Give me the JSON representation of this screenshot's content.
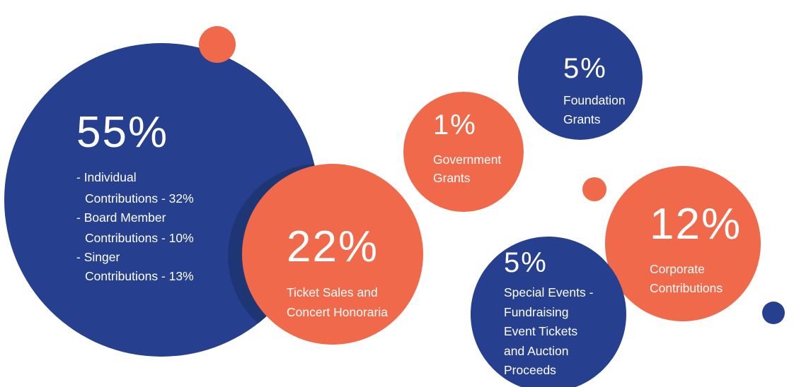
{
  "bubbles": [
    {
      "value": "55%",
      "lines": [
        "- Individual",
        "Contributions - 32%",
        "- Board Member",
        "Contributions - 10%",
        "- Singer",
        "Contributions - 13%"
      ]
    },
    {
      "value": "22%",
      "lines": [
        "Ticket Sales and",
        "Concert Honoraria"
      ]
    },
    {
      "value": "1%",
      "lines": [
        "Government",
        "Grants"
      ]
    },
    {
      "value": "5%",
      "lines": [
        "Foundation",
        "Grants"
      ]
    },
    {
      "value": "12%",
      "lines": [
        "Corporate",
        "Contributions"
      ]
    },
    {
      "value": "5%",
      "lines": [
        "Special Events -",
        "Fundraising",
        "Event Tickets",
        "and Auction",
        "Proceeds"
      ]
    }
  ]
}
